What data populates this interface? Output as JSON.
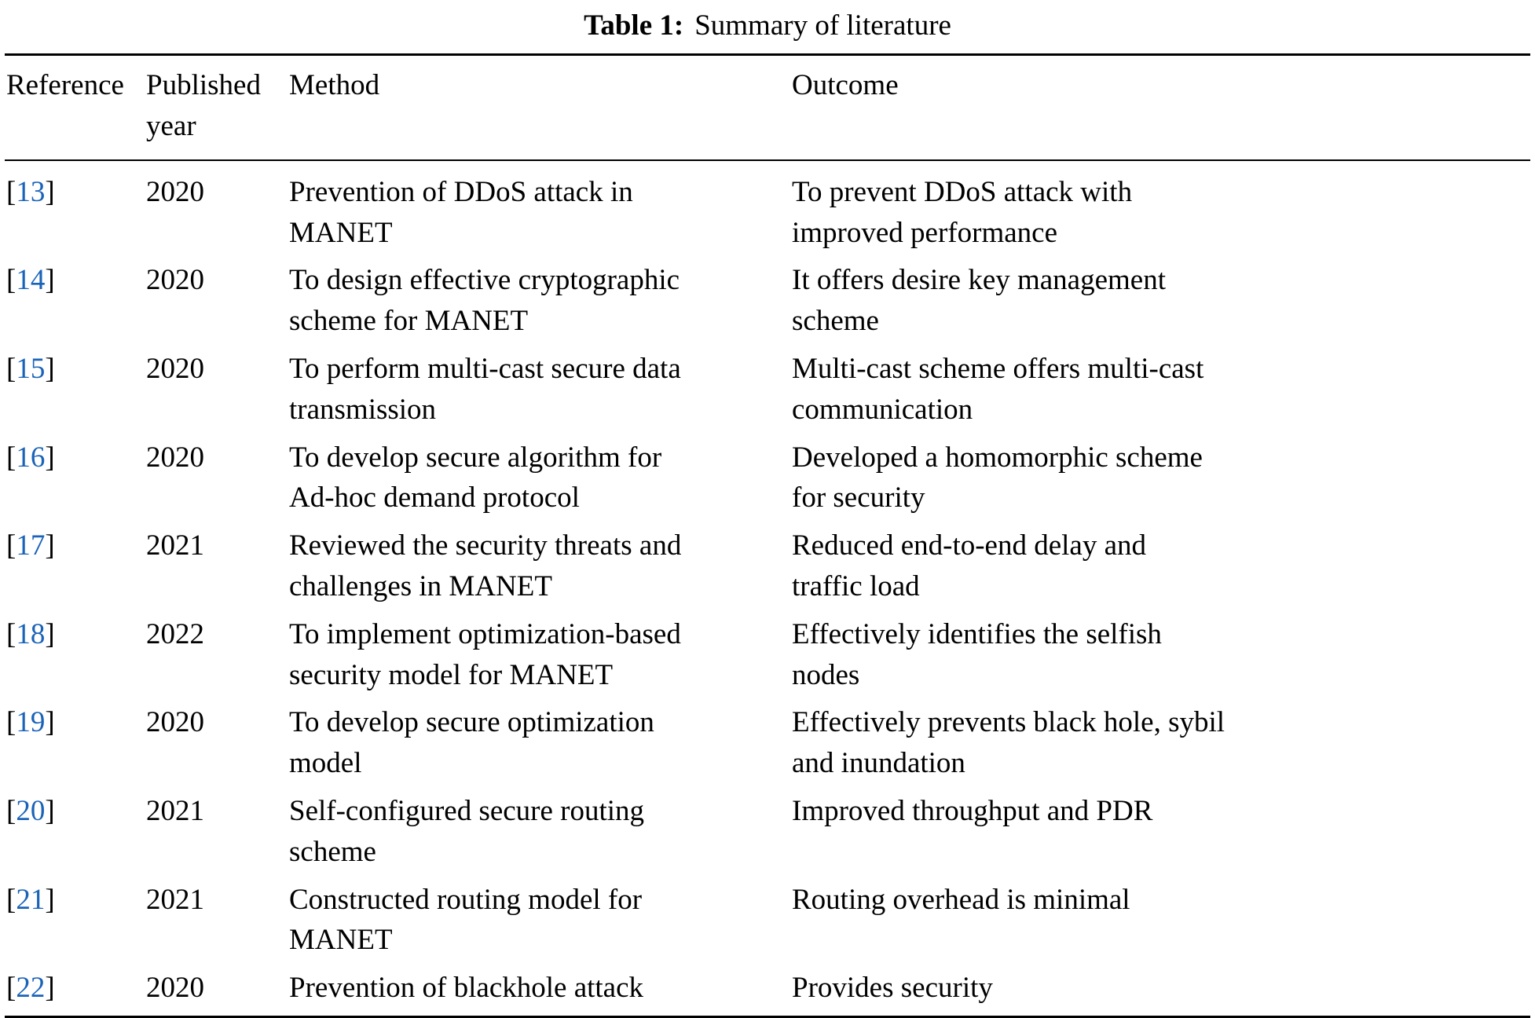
{
  "caption": {
    "label": "Table 1:",
    "text": "Summary of literature"
  },
  "colors": {
    "citation_link": "#1a63b8",
    "text": "#000000",
    "rule": "#000000"
  },
  "table": {
    "ref_open": "[",
    "ref_close": "]",
    "headers": [
      "Reference",
      "Published\nyear",
      "Method",
      "Outcome"
    ],
    "rows": [
      {
        "ref": "13",
        "year": "2020",
        "method": "Prevention of DDoS attack in\nMANET",
        "outcome": "To prevent DDoS attack with\nimproved performance"
      },
      {
        "ref": "14",
        "year": "2020",
        "method": "To design effective cryptographic\nscheme for MANET",
        "outcome": "It offers desire key management\nscheme"
      },
      {
        "ref": "15",
        "year": "2020",
        "method": "To perform multi-cast secure data\ntransmission",
        "outcome": "Multi-cast scheme offers multi-cast\ncommunication"
      },
      {
        "ref": "16",
        "year": "2020",
        "method": "To develop secure algorithm for\nAd-hoc demand protocol",
        "outcome": "Developed a homomorphic scheme\nfor security"
      },
      {
        "ref": "17",
        "year": "2021",
        "method": "Reviewed the security threats and\nchallenges in MANET",
        "outcome": "Reduced end-to-end delay and\ntraffic load"
      },
      {
        "ref": "18",
        "year": "2022",
        "method": "To implement optimization-based\nsecurity model for MANET",
        "outcome": "Effectively identifies the selfish\nnodes"
      },
      {
        "ref": "19",
        "year": "2020",
        "method": "To develop secure optimization\nmodel",
        "outcome": "Effectively prevents black hole, sybil\nand inundation"
      },
      {
        "ref": "20",
        "year": "2021",
        "method": "Self-configured secure routing\nscheme",
        "outcome": "Improved throughput and PDR"
      },
      {
        "ref": "21",
        "year": "2021",
        "method": "Constructed routing model for\nMANET",
        "outcome": "Routing overhead is minimal"
      },
      {
        "ref": "22",
        "year": "2020",
        "method": "Prevention of blackhole attack",
        "outcome": "Provides security"
      }
    ]
  }
}
